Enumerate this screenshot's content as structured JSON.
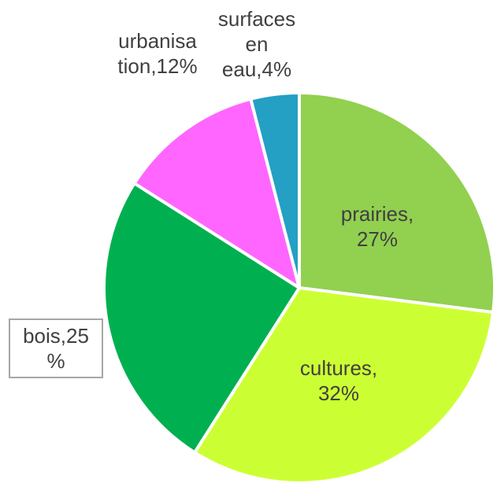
{
  "chart_data": {
    "type": "pie",
    "start_angle_deg": 0,
    "direction": "clockwise",
    "slices": [
      {
        "label_lines": [
          "prairies,",
          "27%"
        ],
        "category": "prairies",
        "value": 27,
        "color": "#92d050"
      },
      {
        "label_lines": [
          "cultures,",
          "32%"
        ],
        "category": "cultures",
        "value": 32,
        "color": "#ccff33"
      },
      {
        "label_lines": [
          "bois,25",
          "%"
        ],
        "category": "bois",
        "value": 25,
        "color": "#00b050"
      },
      {
        "label_lines": [
          "urbanisa",
          "tion,12%"
        ],
        "category": "urbanisation",
        "value": 12,
        "color": "#ff66ff"
      },
      {
        "label_lines": [
          "surfaces",
          "en",
          "eau,4%"
        ],
        "category": "surfaces en eau",
        "value": 4,
        "color": "#23a0c4"
      }
    ],
    "slice_border_color": "#ffffff"
  }
}
